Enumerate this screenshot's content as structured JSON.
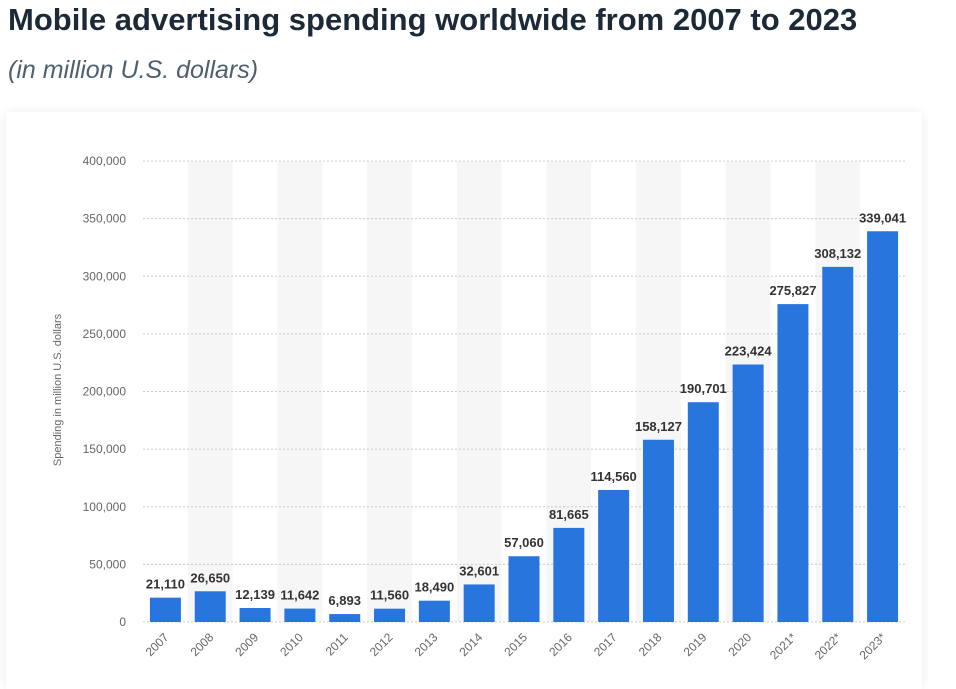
{
  "chart_data": {
    "type": "bar",
    "title": "Mobile advertising spending worldwide from 2007 to 2023",
    "subtitle": "(in million U.S. dollars)",
    "y_label": "Spending in million U.S. dollars",
    "categories": [
      "2007",
      "2008",
      "2009",
      "2010",
      "2011",
      "2012",
      "2013",
      "2014",
      "2015",
      "2016",
      "2017",
      "2018",
      "2019",
      "2020",
      "2021*",
      "2022*",
      "2023*"
    ],
    "values": [
      21110,
      26650,
      12139,
      11642,
      6893,
      11560,
      18490,
      32601,
      57060,
      81665,
      114560,
      158127,
      190701,
      223424,
      275827,
      308132,
      339041
    ],
    "value_labels": [
      "21,110",
      "26,650",
      "12,139",
      "11,642",
      "6,893",
      "11,560",
      "18,490",
      "32,601",
      "57,060",
      "81,665",
      "114,560",
      "158,127",
      "190,701",
      "223,424",
      "275,827",
      "308,132",
      "339,041"
    ],
    "color": "#2876dd",
    "ylim": [
      0,
      400000
    ],
    "yticks": [
      0,
      {
        "value": 50000,
        "label": "50,000"
      },
      {
        "value": 100000,
        "label": "100,000"
      },
      {
        "value": 150000,
        "label": "150,000"
      },
      {
        "value": 200000,
        "label": "200,000"
      },
      {
        "value": 250000,
        "label": "250,000"
      },
      {
        "value": 300000,
        "label": "300,000"
      },
      {
        "value": 350000,
        "label": "350,000"
      },
      {
        "value": 400000,
        "label": "400,000"
      }
    ],
    "grid": true
  }
}
